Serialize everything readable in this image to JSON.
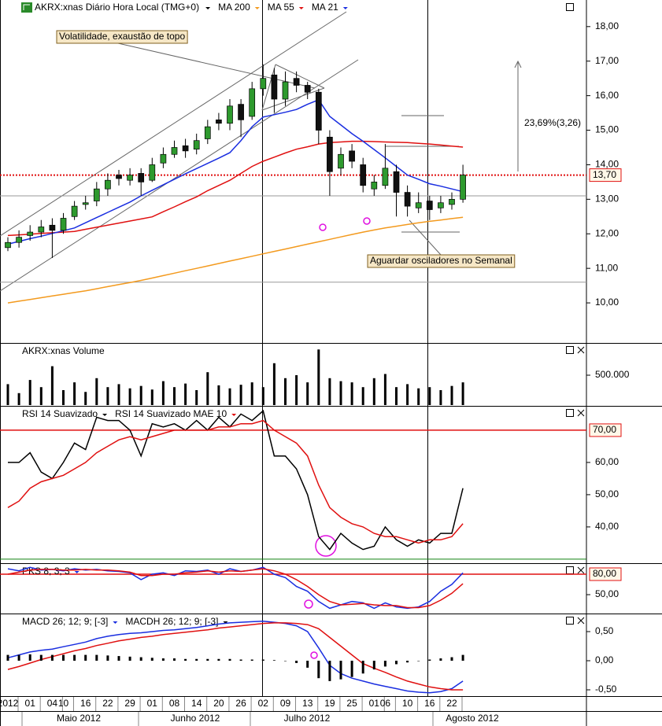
{
  "chart_data": [
    {
      "type": "candlestick",
      "title": "AKRX:xnas Diário Hora Local (TMG+0)",
      "open": [
        11.6,
        11.75,
        11.95,
        12.05,
        12.25,
        12.1,
        12.5,
        12.85,
        12.95,
        13.3,
        13.7,
        13.55,
        13.75,
        13.55,
        14.05,
        14.3,
        14.55,
        14.45,
        14.75,
        15.3,
        15.2,
        15.75,
        15.4,
        16.2,
        16.6,
        15.9,
        16.5,
        16.3,
        16.1,
        14.8,
        13.9,
        14.4,
        14.0,
        13.3,
        13.4,
        13.8,
        13.2,
        12.75,
        12.95,
        12.75,
        12.85,
        13.0
      ],
      "high": [
        11.9,
        12.1,
        12.25,
        12.4,
        12.45,
        12.6,
        12.95,
        13.1,
        13.5,
        13.75,
        13.85,
        13.9,
        13.9,
        14.2,
        14.5,
        14.7,
        14.75,
        14.9,
        15.3,
        15.5,
        15.9,
        15.9,
        16.4,
        16.9,
        16.8,
        16.7,
        16.7,
        16.4,
        16.2,
        15.0,
        14.5,
        14.6,
        14.2,
        13.7,
        14.6,
        14.0,
        13.4,
        13.2,
        13.1,
        13.1,
        13.2,
        14.0
      ],
      "low": [
        11.5,
        11.6,
        11.8,
        11.9,
        11.3,
        12.0,
        12.4,
        12.7,
        12.8,
        13.1,
        13.4,
        13.4,
        13.1,
        13.5,
        13.9,
        14.2,
        14.2,
        14.3,
        14.6,
        15.0,
        15.0,
        14.8,
        15.3,
        16.0,
        15.5,
        15.7,
        16.1,
        15.9,
        14.6,
        13.1,
        13.7,
        13.9,
        13.2,
        13.1,
        13.3,
        12.5,
        12.5,
        12.6,
        12.4,
        12.6,
        12.7,
        12.9
      ],
      "close": [
        11.75,
        11.9,
        12.05,
        12.2,
        12.1,
        12.45,
        12.8,
        12.9,
        13.3,
        13.55,
        13.6,
        13.7,
        13.5,
        14.0,
        14.3,
        14.5,
        14.4,
        14.7,
        15.1,
        15.2,
        15.7,
        15.3,
        16.2,
        16.5,
        15.9,
        16.4,
        16.3,
        16.1,
        15.0,
        13.8,
        14.3,
        14.1,
        13.4,
        13.5,
        13.9,
        13.2,
        12.8,
        12.9,
        12.7,
        12.9,
        13.0,
        13.7
      ],
      "series": [
        {
          "name": "MA 200",
          "color": "#f39a1e",
          "values": [
            10.0,
            10.05,
            10.1,
            10.15,
            10.2,
            10.25,
            10.3,
            10.35,
            10.41,
            10.47,
            10.53,
            10.59,
            10.65,
            10.72,
            10.79,
            10.86,
            10.93,
            11.0,
            11.07,
            11.14,
            11.21,
            11.28,
            11.35,
            11.42,
            11.49,
            11.56,
            11.63,
            11.7,
            11.77,
            11.84,
            11.91,
            11.98,
            12.05,
            12.11,
            12.17,
            12.22,
            12.27,
            12.32,
            12.36,
            12.4,
            12.44,
            12.48
          ]
        },
        {
          "name": "MA 55",
          "color": "#e01010",
          "values": [
            11.95,
            11.97,
            11.99,
            12.01,
            12.03,
            12.05,
            12.07,
            12.13,
            12.19,
            12.25,
            12.31,
            12.37,
            12.43,
            12.49,
            12.64,
            12.78,
            12.93,
            13.07,
            13.25,
            13.4,
            13.55,
            13.75,
            13.95,
            14.1,
            14.22,
            14.34,
            14.45,
            14.52,
            14.6,
            14.64,
            14.66,
            14.68,
            14.68,
            14.67,
            14.66,
            14.65,
            14.64,
            14.62,
            14.6,
            14.57,
            14.54,
            14.51
          ]
        },
        {
          "name": "MA 21",
          "color": "#1a2ee0",
          "values": [
            11.7,
            11.78,
            11.86,
            11.93,
            12.01,
            12.09,
            12.17,
            12.32,
            12.47,
            12.62,
            12.77,
            12.92,
            13.1,
            13.26,
            13.42,
            13.58,
            13.74,
            13.89,
            14.04,
            14.19,
            14.35,
            14.7,
            15.1,
            15.38,
            15.45,
            15.52,
            15.6,
            15.75,
            15.88,
            15.4,
            15.15,
            14.9,
            14.68,
            14.44,
            14.2,
            13.95,
            13.7,
            13.58,
            13.45,
            13.38,
            13.3,
            13.22
          ]
        }
      ],
      "ylim": [
        8.84,
        18.77
      ],
      "yticks": [
        {
          "value": 10,
          "label": "10,00"
        },
        {
          "value": 11,
          "label": "11,00"
        },
        {
          "value": 12,
          "label": "12,00"
        },
        {
          "value": 13,
          "label": "13,00"
        },
        {
          "value": 14,
          "label": "14,00"
        },
        {
          "value": 15,
          "label": "15,00"
        },
        {
          "value": 16,
          "label": "16,00"
        },
        {
          "value": 17,
          "label": "17,00"
        },
        {
          "value": 18,
          "label": "18,00"
        }
      ],
      "levels": [
        {
          "value": 13.7,
          "label": "13,70",
          "color": "#e01010",
          "style": "dotted"
        },
        {
          "value": 13.1,
          "color": "#999999"
        },
        {
          "value": 10.6,
          "color": "#999999"
        }
      ],
      "annotations": [
        "Volatilidade, exaustão de topo",
        "Aguardar osciladores no Semanal",
        "23,69%(3,26)"
      ]
    },
    {
      "type": "bar",
      "title": "AKRX:xnas Volume",
      "color": "#000000",
      "values": [
        350000,
        200000,
        420000,
        300000,
        650000,
        250000,
        380000,
        220000,
        450000,
        300000,
        350000,
        280000,
        320000,
        260000,
        400000,
        300000,
        360000,
        250000,
        550000,
        330000,
        280000,
        340000,
        380000,
        300000,
        700000,
        450000,
        500000,
        380000,
        930000,
        450000,
        400000,
        380000,
        300000,
        450000,
        520000,
        300000,
        350000,
        280000,
        300000,
        250000,
        320000,
        380000
      ],
      "ylim": [
        0,
        1026000
      ],
      "yticks": [
        {
          "value": 500000,
          "label": "500.000"
        }
      ]
    },
    {
      "type": "line",
      "series": [
        {
          "name": "RSI 14 Suavizado",
          "color": "#000000",
          "values": [
            60,
            60,
            63,
            57,
            55,
            60,
            66,
            64,
            74,
            73,
            73,
            70,
            62,
            72,
            71,
            72,
            70,
            73,
            70,
            74,
            71,
            75,
            73,
            76,
            62,
            62,
            58,
            50,
            37,
            33,
            38,
            35,
            33,
            34,
            40,
            36,
            34,
            36,
            35,
            38,
            38,
            52
          ]
        },
        {
          "name": "RSI 14 Suavizado MAE 10",
          "color": "#e01010",
          "values": [
            46,
            48,
            52,
            54,
            55,
            56,
            58,
            60,
            63,
            65,
            67,
            68,
            67,
            68,
            69,
            70,
            70,
            70,
            70,
            71,
            71,
            72,
            72,
            73,
            70,
            68,
            66,
            62,
            53,
            46,
            43,
            41,
            40,
            38,
            37,
            37,
            36,
            35,
            36,
            36,
            37,
            41
          ]
        }
      ],
      "ylim": [
        29,
        77.3
      ],
      "yticks": [
        {
          "value": 40,
          "label": "40,00"
        },
        {
          "value": 50,
          "label": "50,00"
        },
        {
          "value": 60,
          "label": "60,00"
        }
      ],
      "levels": [
        {
          "value": 70,
          "label": "70,00",
          "color": "#e01010"
        },
        {
          "value": 30,
          "color": "#108010"
        }
      ]
    },
    {
      "type": "line",
      "series": [
        {
          "name": "PKS 8; 3; 3",
          "color": "#1a2ee0",
          "values": [
            88,
            85,
            90,
            86,
            87,
            85,
            88,
            86,
            87,
            85,
            84,
            82,
            72,
            80,
            82,
            78,
            85,
            84,
            86,
            80,
            88,
            84,
            86,
            90,
            80,
            75,
            62,
            55,
            40,
            30,
            35,
            40,
            38,
            30,
            38,
            32,
            30,
            32,
            40,
            55,
            65,
            82
          ]
        },
        {
          "color": "#e01010",
          "values": [
            80,
            83,
            86,
            87,
            87,
            86,
            86,
            87,
            86,
            86,
            85,
            83,
            78,
            78,
            80,
            80,
            82,
            83,
            85,
            83,
            85,
            84,
            86,
            88,
            85,
            80,
            72,
            62,
            50,
            40,
            35,
            36,
            37,
            35,
            34,
            34,
            31,
            31,
            34,
            42,
            52,
            66
          ]
        }
      ],
      "ylim": [
        23.5,
        95
      ],
      "yticks": [
        {
          "value": 50,
          "label": "50,00"
        }
      ],
      "levels": [
        {
          "value": 80,
          "label": "80,00",
          "color": "#e01010"
        }
      ]
    },
    {
      "type": "line",
      "series": [
        {
          "name": "MACD 26; 12; 9; [-3]",
          "color": "#1a2ee0",
          "values": [
            0.05,
            0.1,
            0.15,
            0.18,
            0.2,
            0.24,
            0.28,
            0.32,
            0.38,
            0.42,
            0.45,
            0.47,
            0.48,
            0.5,
            0.52,
            0.53,
            0.55,
            0.57,
            0.6,
            0.63,
            0.65,
            0.66,
            0.67,
            0.68,
            0.66,
            0.64,
            0.6,
            0.5,
            0.22,
            -0.08,
            -0.22,
            -0.3,
            -0.35,
            -0.4,
            -0.44,
            -0.48,
            -0.52,
            -0.54,
            -0.55,
            -0.53,
            -0.48,
            -0.35
          ]
        },
        {
          "color": "#e01010",
          "values": [
            -0.15,
            -0.1,
            -0.04,
            0.02,
            0.07,
            0.12,
            0.17,
            0.21,
            0.26,
            0.3,
            0.34,
            0.37,
            0.4,
            0.42,
            0.45,
            0.47,
            0.49,
            0.51,
            0.53,
            0.56,
            0.58,
            0.6,
            0.62,
            0.64,
            0.65,
            0.65,
            0.64,
            0.62,
            0.55,
            0.4,
            0.25,
            0.1,
            -0.05,
            -0.13,
            -0.2,
            -0.28,
            -0.35,
            -0.4,
            -0.45,
            -0.48,
            -0.5,
            -0.5
          ]
        },
        {
          "name": "MACDH 26; 12; 9; [-3]",
          "type": "bar",
          "color": "#000000",
          "values": [
            0.1,
            0.1,
            0.11,
            0.1,
            0.1,
            0.1,
            0.1,
            0.1,
            0.1,
            0.09,
            0.08,
            0.07,
            0.06,
            0.05,
            0.04,
            0.04,
            0.03,
            0.03,
            0.03,
            0.03,
            0.03,
            0.02,
            0.02,
            0.02,
            0.01,
            0,
            -0.04,
            -0.12,
            -0.3,
            -0.35,
            -0.32,
            -0.28,
            -0.22,
            -0.15,
            -0.1,
            -0.06,
            -0.03,
            0,
            0.02,
            0.04,
            0.06,
            0.1
          ]
        }
      ],
      "ylim": [
        -0.608,
        0.797
      ],
      "yticks": [
        {
          "value": -0.5,
          "label": "-0,50"
        },
        {
          "value": 0,
          "label": "0,00"
        },
        {
          "value": 0.5,
          "label": "0,50"
        }
      ],
      "categories": [
        "2012",
        null,
        "01",
        null,
        "04",
        "10",
        null,
        "16",
        null,
        "22",
        null,
        "29",
        null,
        "01",
        null,
        "08",
        null,
        "14",
        null,
        "20",
        null,
        "26",
        null,
        "02",
        null,
        "09",
        null,
        "13",
        null,
        "19",
        null,
        "25",
        null,
        "01",
        "06",
        null,
        "10",
        null,
        "16",
        null,
        "22",
        null
      ],
      "months": [
        "Maio 2012",
        "Junho 2012",
        "Julho 2012",
        "Agosto 2012"
      ]
    }
  ]
}
